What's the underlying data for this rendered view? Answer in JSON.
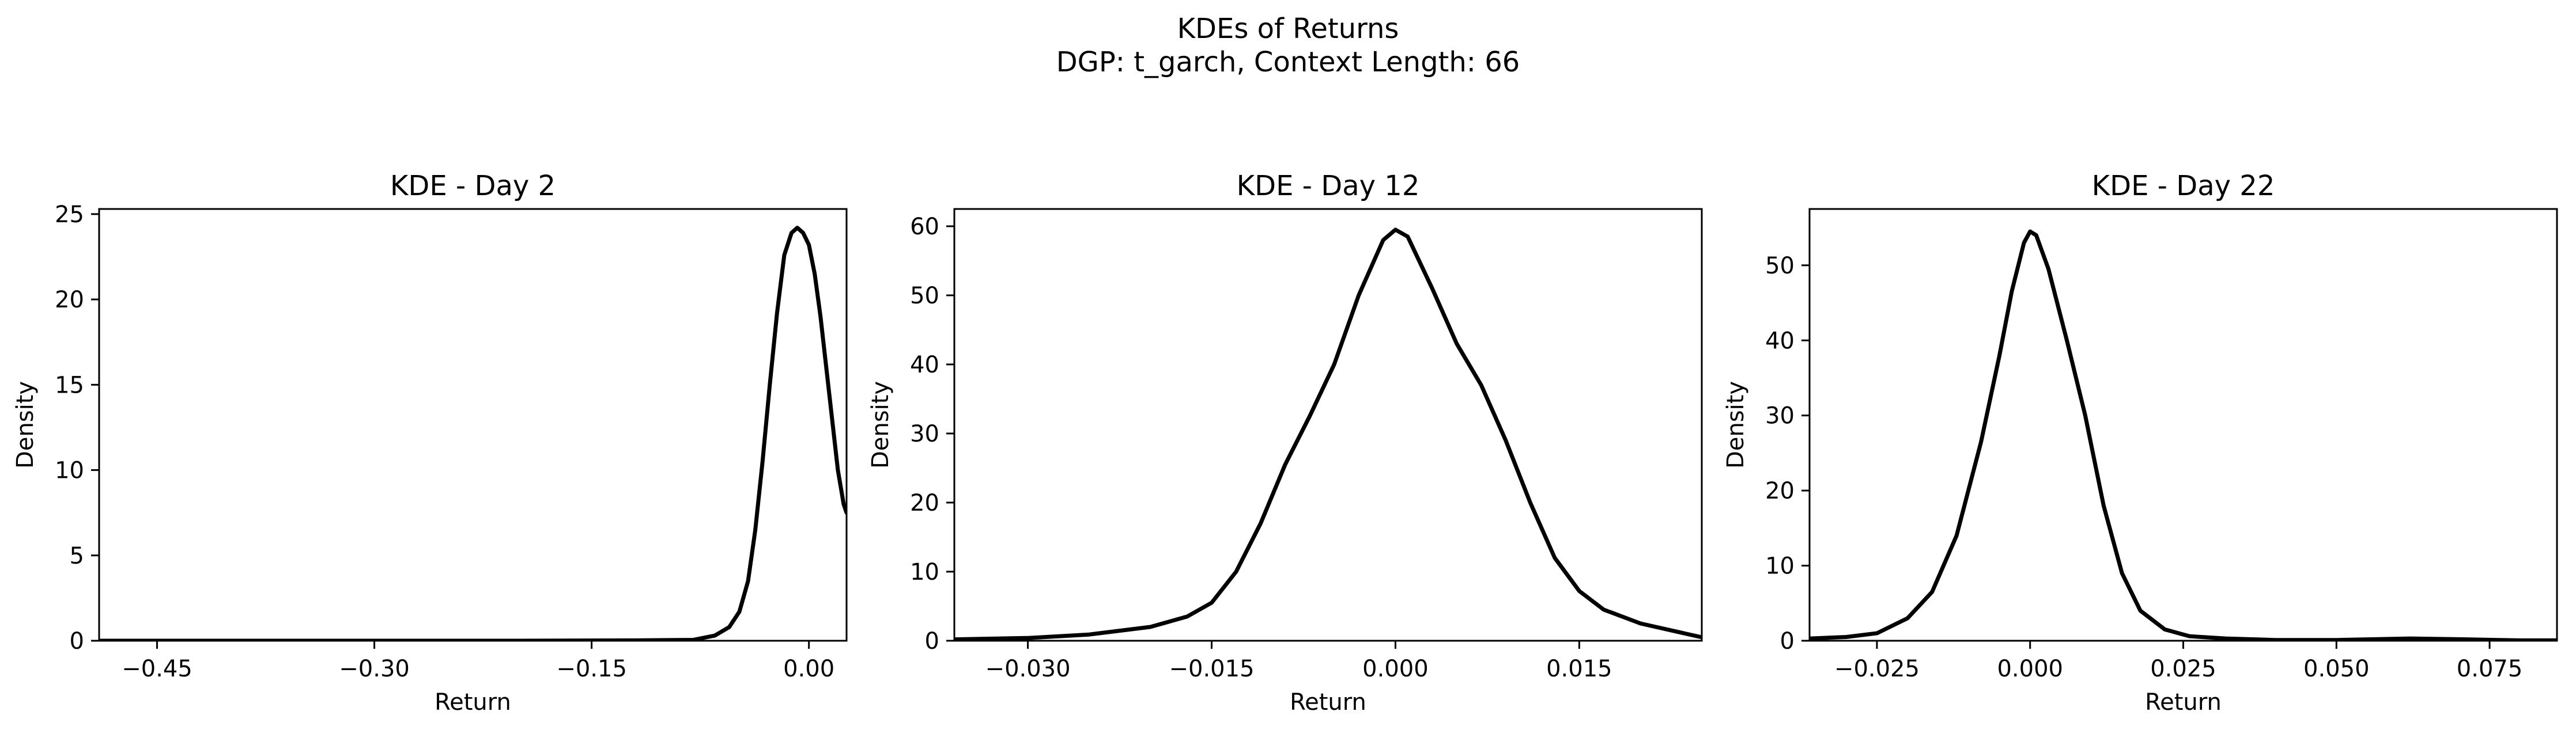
{
  "figure": {
    "title_line1": "KDEs of Returns",
    "title_line2": "DGP: t_garch, Context Length: 66"
  },
  "chart_data": [
    {
      "type": "line",
      "title": "KDE - Day 2",
      "xlabel": "Return",
      "ylabel": "Density",
      "xlim": [
        -0.49,
        0.026
      ],
      "ylim": [
        0,
        25.3
      ],
      "xticks": [
        -0.45,
        -0.3,
        -0.15,
        0.0
      ],
      "xtick_labels": [
        "−0.45",
        "−0.30",
        "−0.15",
        "0.00"
      ],
      "yticks": [
        0,
        5,
        10,
        15,
        20,
        25
      ],
      "ytick_labels": [
        "0",
        "5",
        "10",
        "15",
        "20",
        "25"
      ],
      "grid": false,
      "line_color": "#000000",
      "series": [
        {
          "x": [
            -0.49,
            -0.4,
            -0.3,
            -0.2,
            -0.12,
            -0.08,
            -0.065,
            -0.055,
            -0.048,
            -0.042,
            -0.037,
            -0.032,
            -0.027,
            -0.022,
            -0.017,
            -0.012,
            -0.008,
            -0.004,
            0.0,
            0.004,
            0.008,
            0.012,
            0.016,
            0.02,
            0.024,
            0.026
          ],
          "y": [
            0,
            0,
            0,
            0,
            0.02,
            0.05,
            0.3,
            0.8,
            1.7,
            3.5,
            6.5,
            10.5,
            15.0,
            19.2,
            22.6,
            23.9,
            24.2,
            23.9,
            23.2,
            21.5,
            19.0,
            16.0,
            13.0,
            10.0,
            8.0,
            7.5
          ]
        }
      ]
    },
    {
      "type": "line",
      "title": "KDE - Day 12",
      "xlabel": "Return",
      "ylabel": "Density",
      "xlim": [
        -0.036,
        0.025
      ],
      "ylim": [
        0,
        62.5
      ],
      "xticks": [
        -0.03,
        -0.015,
        0.0,
        0.015
      ],
      "xtick_labels": [
        "−0.030",
        "−0.015",
        "0.000",
        "0.015"
      ],
      "yticks": [
        0,
        10,
        20,
        30,
        40,
        50,
        60
      ],
      "ytick_labels": [
        "0",
        "10",
        "20",
        "30",
        "40",
        "50",
        "60"
      ],
      "grid": false,
      "line_color": "#000000",
      "series": [
        {
          "x": [
            -0.036,
            -0.03,
            -0.025,
            -0.02,
            -0.017,
            -0.015,
            -0.013,
            -0.011,
            -0.009,
            -0.007,
            -0.005,
            -0.003,
            -0.001,
            0.0,
            0.001,
            0.003,
            0.005,
            0.007,
            0.009,
            0.011,
            0.013,
            0.015,
            0.017,
            0.02,
            0.025
          ],
          "y": [
            0.2,
            0.4,
            0.9,
            2.0,
            3.5,
            5.5,
            10.0,
            17.0,
            25.5,
            32.5,
            40.0,
            50.0,
            58.0,
            59.5,
            58.5,
            51.0,
            43.0,
            37.0,
            29.0,
            20.0,
            12.0,
            7.2,
            4.5,
            2.5,
            0.5
          ]
        }
      ]
    },
    {
      "type": "line",
      "title": "KDE - Day 22",
      "xlabel": "Return",
      "ylabel": "Density",
      "xlim": [
        -0.036,
        0.086
      ],
      "ylim": [
        0,
        57.5
      ],
      "xticks": [
        -0.025,
        0.0,
        0.025,
        0.05,
        0.075
      ],
      "xtick_labels": [
        "−0.025",
        "0.000",
        "0.025",
        "0.050",
        "0.075"
      ],
      "yticks": [
        0,
        10,
        20,
        30,
        40,
        50
      ],
      "ytick_labels": [
        "0",
        "10",
        "20",
        "30",
        "40",
        "50"
      ],
      "grid": false,
      "line_color": "#000000",
      "series": [
        {
          "x": [
            -0.036,
            -0.03,
            -0.025,
            -0.02,
            -0.016,
            -0.012,
            -0.008,
            -0.005,
            -0.003,
            -0.001,
            0.0,
            0.001,
            0.003,
            0.006,
            0.009,
            0.012,
            0.015,
            0.018,
            0.022,
            0.026,
            0.032,
            0.04,
            0.05,
            0.062,
            0.07,
            0.08,
            0.086
          ],
          "y": [
            0.3,
            0.5,
            1.0,
            3.0,
            6.5,
            14.0,
            26.5,
            38.0,
            46.5,
            53.0,
            54.5,
            54.0,
            49.5,
            40.0,
            30.0,
            18.0,
            9.0,
            4.0,
            1.5,
            0.6,
            0.3,
            0.1,
            0.1,
            0.3,
            0.2,
            0.05,
            0.05
          ]
        }
      ]
    }
  ]
}
